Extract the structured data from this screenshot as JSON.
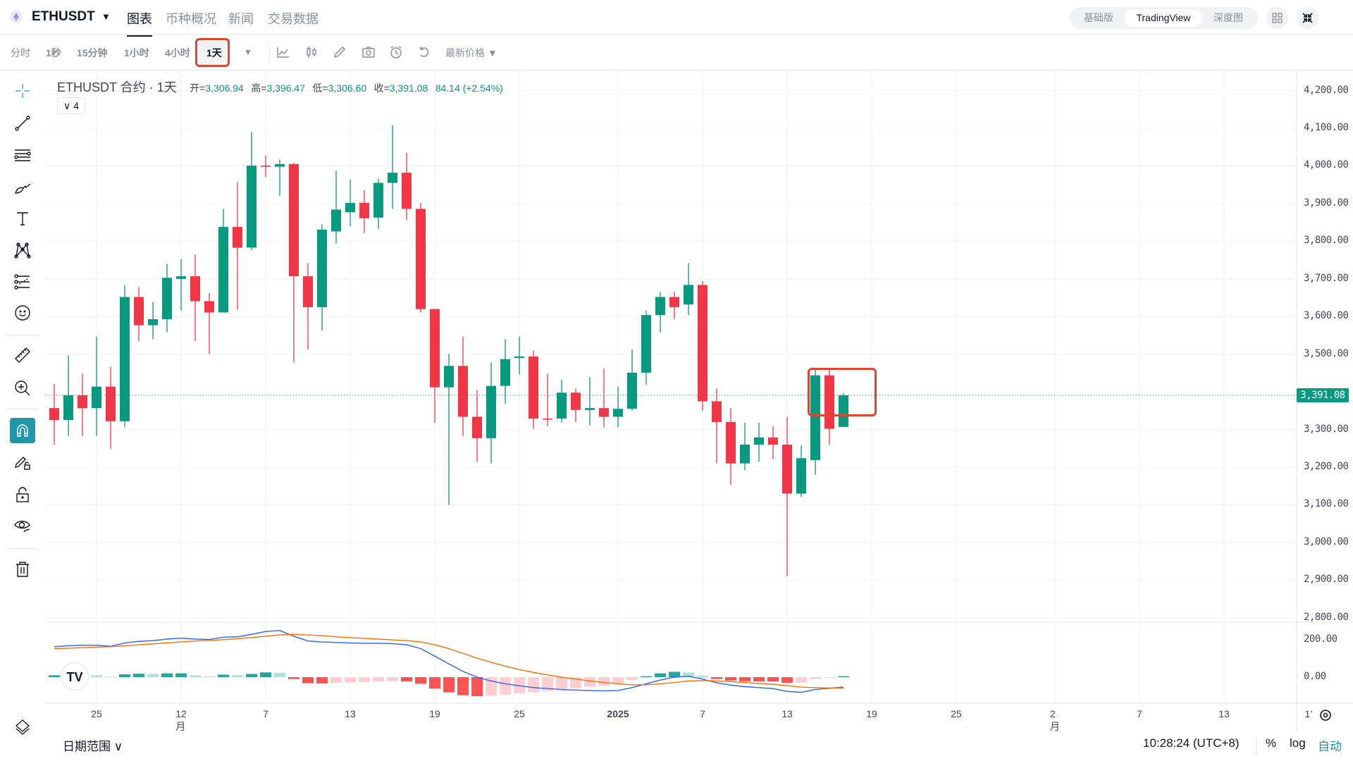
{
  "header": {
    "symbol": "ETHUSDT",
    "symbol_dropdown": "▼",
    "tabs": [
      {
        "label": "图表",
        "active": true
      },
      {
        "label": "币种概况",
        "active": false
      },
      {
        "label": "新闻",
        "active": false
      },
      {
        "label": "交易数据",
        "active": false
      }
    ],
    "view_modes": [
      {
        "label": "基础版",
        "active": false
      },
      {
        "label": "TradingView",
        "active": true
      },
      {
        "label": "深度图",
        "active": false
      }
    ]
  },
  "toolbar": {
    "timeframes": [
      {
        "label": "分时"
      },
      {
        "label": "1秒"
      },
      {
        "label": "15分钟"
      },
      {
        "label": "1小时"
      },
      {
        "label": "4小时"
      },
      {
        "label": "1天",
        "active": true
      }
    ],
    "more": "▼",
    "icons": [
      "indicators-icon",
      "candle-type-icon",
      "pencil-icon",
      "camera-icon",
      "alarm-icon",
      "undo-icon"
    ],
    "price_type": "最新价格 ▼"
  },
  "legend": {
    "title": "ETHUSDT 合约 · 1天",
    "open_label": "开=",
    "open": "3,306.94",
    "high_label": "高=",
    "high": "3,396.47",
    "low_label": "低=",
    "low": "3,306.60",
    "close_label": "收=",
    "close": "3,391.08",
    "change": "84.14 (+2.54%)",
    "collapse": "4"
  },
  "price_axis": [
    "4,200.00",
    "4,100.00",
    "4,000.00",
    "3,900.00",
    "3,800.00",
    "3,700.00",
    "3,600.00",
    "3,500.00",
    "3,300.00",
    "3,200.00",
    "3,100.00",
    "3,000.00",
    "2,900.00",
    "2,800.00"
  ],
  "last_price": "3,391.08",
  "macd_axis": [
    "200.00",
    "0.00"
  ],
  "time_axis": [
    {
      "label": "25",
      "day": 3
    },
    {
      "label": "12月",
      "day": 9
    },
    {
      "label": "7",
      "day": 15
    },
    {
      "label": "13",
      "day": 21
    },
    {
      "label": "19",
      "day": 27
    },
    {
      "label": "25",
      "day": 33
    },
    {
      "label": "2025",
      "day": 40,
      "bold": true
    },
    {
      "label": "7",
      "day": 46
    },
    {
      "label": "13",
      "day": 52
    },
    {
      "label": "19",
      "day": 58
    },
    {
      "label": "25",
      "day": 64
    },
    {
      "label": "2月",
      "day": 71
    },
    {
      "label": "7",
      "day": 77
    },
    {
      "label": "13",
      "day": 83
    },
    {
      "label": "1’",
      "day": 89
    }
  ],
  "bottom": {
    "date_range": "日期范围 ∨",
    "clock": "10:28:24 (UTC+8)",
    "percent": "%",
    "log": "log",
    "auto": "自动"
  },
  "colors": {
    "up": "#089981",
    "down": "#f23645",
    "accent": "#2196a8",
    "highlight_box": "#e0432f",
    "macd": "#2962ff",
    "signal": "#ff6d00"
  },
  "chart_data": {
    "type": "candlestick",
    "price_range": [
      2800,
      4200
    ],
    "x_start": "2024-11-22",
    "ohlc": [
      [
        3357,
        3421,
        3260,
        3325
      ],
      [
        3325,
        3497,
        3283,
        3391
      ],
      [
        3391,
        3448,
        3283,
        3357
      ],
      [
        3357,
        3547,
        3283,
        3414
      ],
      [
        3414,
        3467,
        3249,
        3322
      ],
      [
        3322,
        3684,
        3306,
        3652
      ],
      [
        3652,
        3678,
        3535,
        3577
      ],
      [
        3577,
        3639,
        3540,
        3593
      ],
      [
        3593,
        3740,
        3558,
        3703
      ],
      [
        3700,
        3753,
        3616,
        3707
      ],
      [
        3707,
        3765,
        3535,
        3641
      ],
      [
        3641,
        3662,
        3501,
        3611
      ],
      [
        3611,
        3886,
        3611,
        3838
      ],
      [
        3838,
        3957,
        3618,
        3783
      ],
      [
        3783,
        4090,
        3776,
        4001
      ],
      [
        4001,
        4028,
        3971,
        3998
      ],
      [
        3998,
        4017,
        3920,
        4005
      ],
      [
        4005,
        4008,
        3478,
        3707
      ],
      [
        3707,
        3742,
        3513,
        3625
      ],
      [
        3625,
        3845,
        3563,
        3831
      ],
      [
        3826,
        3987,
        3794,
        3884
      ],
      [
        3877,
        3964,
        3840,
        3902
      ],
      [
        3902,
        3936,
        3822,
        3861
      ],
      [
        3863,
        3966,
        3833,
        3955
      ],
      [
        3955,
        4108,
        3886,
        3982
      ],
      [
        3982,
        4035,
        3856,
        3886
      ],
      [
        3886,
        3902,
        3611,
        3620
      ],
      [
        3620,
        3620,
        3318,
        3412
      ],
      [
        3412,
        3501,
        3100,
        3469
      ],
      [
        3469,
        3547,
        3283,
        3334
      ],
      [
        3334,
        3405,
        3215,
        3277
      ],
      [
        3277,
        3478,
        3210,
        3416
      ],
      [
        3416,
        3540,
        3368,
        3487
      ],
      [
        3490,
        3547,
        3446,
        3494
      ],
      [
        3494,
        3510,
        3302,
        3329
      ],
      [
        3329,
        3448,
        3309,
        3327
      ],
      [
        3329,
        3432,
        3318,
        3398
      ],
      [
        3398,
        3409,
        3320,
        3352
      ],
      [
        3352,
        3439,
        3311,
        3357
      ],
      [
        3357,
        3462,
        3306,
        3334
      ],
      [
        3334,
        3414,
        3306,
        3355
      ],
      [
        3355,
        3513,
        3350,
        3451
      ],
      [
        3451,
        3616,
        3419,
        3604
      ],
      [
        3604,
        3666,
        3558,
        3652
      ],
      [
        3652,
        3666,
        3593,
        3625
      ],
      [
        3632,
        3742,
        3604,
        3684
      ],
      [
        3684,
        3694,
        3350,
        3375
      ],
      [
        3375,
        3409,
        3210,
        3320
      ],
      [
        3320,
        3357,
        3153,
        3210
      ],
      [
        3210,
        3318,
        3192,
        3260
      ],
      [
        3260,
        3318,
        3215,
        3279
      ],
      [
        3279,
        3309,
        3222,
        3260
      ],
      [
        3260,
        3334,
        2910,
        3130
      ],
      [
        3130,
        3258,
        3121,
        3224
      ],
      [
        3219,
        3460,
        3180,
        3444
      ],
      [
        3444,
        3458,
        3260,
        3302
      ],
      [
        3306.94,
        3396.47,
        3306.6,
        3391.08
      ]
    ],
    "macd_range": [
      -120,
      260
    ],
    "macd": [
      160,
      165,
      168,
      168,
      162,
      180,
      188,
      192,
      200,
      205,
      200,
      198,
      210,
      212,
      225,
      240,
      245,
      215,
      190,
      185,
      182,
      180,
      178,
      178,
      176,
      170,
      150,
      110,
      70,
      30,
      0,
      -20,
      -35,
      -45,
      -55,
      -60,
      -65,
      -68,
      -70,
      -72,
      -70,
      -55,
      -35,
      -15,
      0,
      5,
      -10,
      -30,
      -42,
      -50,
      -55,
      -60,
      -75,
      -80,
      -65,
      -58,
      -52
    ],
    "signal": [
      150,
      152,
      155,
      158,
      160,
      165,
      170,
      175,
      180,
      185,
      190,
      193,
      197,
      202,
      208,
      215,
      222,
      225,
      222,
      218,
      212,
      208,
      204,
      200,
      196,
      192,
      185,
      170,
      150,
      125,
      100,
      78,
      58,
      40,
      25,
      12,
      0,
      -10,
      -20,
      -28,
      -35,
      -40,
      -40,
      -35,
      -28,
      -20,
      -18,
      -20,
      -24,
      -28,
      -33,
      -38,
      -45,
      -52,
      -55,
      -57,
      -57
    ],
    "histogram": [
      10,
      13,
      13,
      10,
      2,
      15,
      18,
      17,
      20,
      20,
      10,
      5,
      13,
      10,
      17,
      25,
      23,
      -10,
      -32,
      -33,
      -30,
      -28,
      -26,
      -22,
      -20,
      -22,
      -35,
      -60,
      -80,
      -95,
      -100,
      -98,
      -93,
      -85,
      -80,
      -72,
      -65,
      -58,
      -50,
      -44,
      -35,
      -15,
      5,
      20,
      28,
      25,
      8,
      -10,
      -18,
      -22,
      -22,
      -22,
      -30,
      -28,
      -10,
      -1,
      5
    ]
  }
}
